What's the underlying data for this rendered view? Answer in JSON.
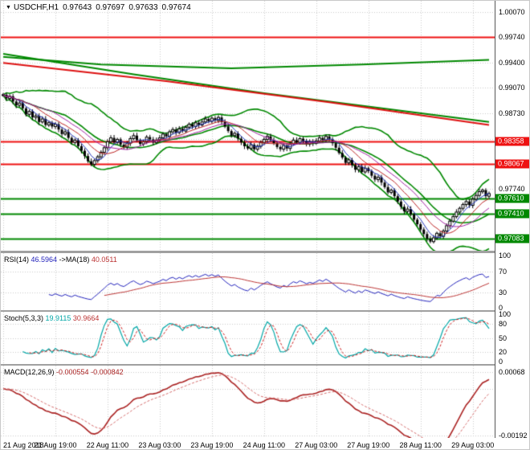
{
  "title_bar": {
    "marker_icon": "▼",
    "symbol_tf": "USDCHF,H1",
    "open": "0.97643",
    "high": "0.97697",
    "low": "0.97633",
    "close": "0.97674"
  },
  "colors": {
    "grid": "#c9c9c9",
    "candle": "#000000",
    "candle_up_fill": "#ffffff",
    "red_line": "#ee1111",
    "green_line": "#008800",
    "bb_green": "#008800",
    "ma_blue": "#2233bb",
    "ma_red": "#bb2222",
    "ma_magenta": "#a020a0",
    "rsi_blue": "#2222bb",
    "rsi_ma_red": "#bb3333",
    "stoch_cyan": "#00a6a6",
    "stoch_sig_red": "#cc2222",
    "macd_red": "#aa2222",
    "macd_sig": "#d46a6a",
    "badge_red": "#ee1111",
    "badge_green": "#008800"
  },
  "chart_data": {
    "type": "candlestick",
    "symbol": "USDCHF",
    "timeframe": "H1",
    "x_axis": {
      "ticks": [
        {
          "t": "21 Aug 2018",
          "bar": 0
        },
        {
          "t": "21 Aug 19:00",
          "bar": 16
        },
        {
          "t": "22 Aug 11:00",
          "bar": 32
        },
        {
          "t": "23 Aug 03:00",
          "bar": 48
        },
        {
          "t": "23 Aug 19:00",
          "bar": 64
        },
        {
          "t": "24 Aug 11:00",
          "bar": 80
        },
        {
          "t": "27 Aug 03:00",
          "bar": 96
        },
        {
          "t": "27 Aug 19:00",
          "bar": 112
        },
        {
          "t": "28 Aug 11:00",
          "bar": 128
        },
        {
          "t": "29 Aug 03:00",
          "bar": 144
        }
      ]
    },
    "main": {
      "price_top": 1.0022,
      "price_bottom": 0.9692,
      "grid_prices": [
        1.0007,
        0.9974,
        0.994,
        0.9907,
        0.9873,
        0.984,
        0.9807,
        0.9774,
        0.9741,
        0.9708
      ],
      "scale_labels": [
        {
          "text": "1.00070",
          "price": 1.0007
        },
        {
          "text": "0.99740",
          "price": 0.9974
        },
        {
          "text": "0.99400",
          "price": 0.994
        },
        {
          "text": "0.99070",
          "price": 0.9907
        },
        {
          "text": "0.98730",
          "price": 0.9873
        },
        {
          "text": "0.97740",
          "price": 0.9774
        }
      ],
      "levels": [
        {
          "price": 0.9974,
          "color": "red"
        },
        {
          "price": 0.98358,
          "color": "red",
          "badge": "0.98358"
        },
        {
          "price": 0.98067,
          "color": "red",
          "badge": "0.98067"
        },
        {
          "price": 0.9761,
          "color": "green",
          "badge": "0.97610"
        },
        {
          "price": 0.9741,
          "color": "green",
          "badge": "0.97410"
        },
        {
          "price": 0.97083,
          "color": "green",
          "badge": "0.97083"
        }
      ],
      "trendlines": [
        {
          "color": "#008800",
          "width": 2,
          "points": [
            [
              0,
              0.9948
            ],
            [
              30,
              0.9938
            ],
            [
              70,
              0.9933
            ],
            [
              110,
              0.9938
            ],
            [
              149,
              0.9944
            ]
          ]
        },
        {
          "color": "#008800",
          "width": 2,
          "points": [
            [
              0,
              0.9952
            ],
            [
              40,
              0.9925
            ],
            [
              80,
              0.99
            ],
            [
              120,
              0.9878
            ],
            [
              149,
              0.9862
            ]
          ]
        },
        {
          "color": "#dd1111",
          "width": 2,
          "points": [
            [
              0,
              0.994
            ],
            [
              50,
              0.9916
            ],
            [
              100,
              0.9888
            ],
            [
              149,
              0.9858
            ]
          ]
        }
      ]
    },
    "closes": [
      0.9898,
      0.9893,
      0.9896,
      0.9889,
      0.9884,
      0.9887,
      0.988,
      0.9872,
      0.9876,
      0.9868,
      0.987,
      0.9862,
      0.9866,
      0.9858,
      0.9861,
      0.9856,
      0.9859,
      0.9852,
      0.9846,
      0.9849,
      0.9841,
      0.9835,
      0.9838,
      0.983,
      0.9824,
      0.9817,
      0.981,
      0.9806,
      0.9811,
      0.9816,
      0.9822,
      0.9828,
      0.9836,
      0.9841,
      0.9835,
      0.9839,
      0.9832,
      0.9829,
      0.9834,
      0.984,
      0.9844,
      0.9838,
      0.9833,
      0.9836,
      0.9842,
      0.9839,
      0.9835,
      0.9838,
      0.9841,
      0.9846,
      0.9843,
      0.9849,
      0.9852,
      0.9848,
      0.9853,
      0.985,
      0.9855,
      0.9859,
      0.9856,
      0.9861,
      0.9858,
      0.9862,
      0.9866,
      0.9863,
      0.9867,
      0.9864,
      0.9868,
      0.9862,
      0.9856,
      0.985,
      0.9844,
      0.9847,
      0.984,
      0.9835,
      0.983,
      0.9827,
      0.9832,
      0.9826,
      0.983,
      0.9835,
      0.9839,
      0.9843,
      0.9838,
      0.9834,
      0.9829,
      0.9826,
      0.9831,
      0.9827,
      0.9833,
      0.9838,
      0.9835,
      0.984,
      0.9837,
      0.9833,
      0.9836,
      0.9834,
      0.9837,
      0.9841,
      0.9838,
      0.9843,
      0.9839,
      0.9834,
      0.9828,
      0.9821,
      0.9815,
      0.9808,
      0.9812,
      0.9805,
      0.9799,
      0.9803,
      0.9796,
      0.9801,
      0.9797,
      0.9791,
      0.9786,
      0.9789,
      0.9782,
      0.9776,
      0.9769,
      0.9772,
      0.9764,
      0.9757,
      0.975,
      0.9744,
      0.9747,
      0.974,
      0.9733,
      0.9727,
      0.972,
      0.9714,
      0.9708,
      0.9704,
      0.9709,
      0.9715,
      0.9711,
      0.9718,
      0.9725,
      0.9731,
      0.9737,
      0.9743,
      0.9748,
      0.9753,
      0.9757,
      0.9752,
      0.976,
      0.9765,
      0.977,
      0.9772,
      0.9764,
      0.97674
    ],
    "indicators": {
      "fast_ma_periods": [
        5,
        10,
        16
      ],
      "bollinger": {
        "period": 20,
        "deviation": 2
      },
      "rsi": {
        "period": 14,
        "ma_period": 18,
        "range": [
          0,
          100
        ],
        "guides": [
          70,
          30
        ],
        "label_segments": [
          {
            "t": "RSI(14) ",
            "c": "#000000"
          },
          {
            "t": "46.5964",
            "c": "#2222bb"
          },
          {
            "t": " ->MA(18) ",
            "c": "#000000"
          },
          {
            "t": "40.0511",
            "c": "#bb3333"
          }
        ],
        "scale_labels": [
          {
            "t": "100",
            "v": 100
          },
          {
            "t": "70",
            "v": 70
          },
          {
            "t": "30",
            "v": 30
          },
          {
            "t": "0",
            "v": 0
          }
        ]
      },
      "stoch": {
        "k": 5,
        "slowing": 3,
        "d": 3,
        "range": [
          0,
          100
        ],
        "guides": [
          80,
          50,
          20
        ],
        "label_segments": [
          {
            "t": "Stoch(5,3,3) ",
            "c": "#000000"
          },
          {
            "t": "19.9115",
            "c": "#00a6a6"
          },
          {
            "t": " 30.9664",
            "c": "#bb3333"
          }
        ],
        "scale_labels": [
          {
            "t": "100",
            "v": 100
          },
          {
            "t": "80",
            "v": 80
          },
          {
            "t": "50",
            "v": 50
          },
          {
            "t": "20",
            "v": 20
          },
          {
            "t": "0",
            "v": 0
          }
        ]
      },
      "macd": {
        "fast": 12,
        "slow": 26,
        "signal": 9,
        "range_top": 0.00094,
        "range_bottom": -0.00202,
        "guides": [
          0.00068,
          0,
          -0.00192
        ],
        "label_segments": [
          {
            "t": "MACD(12,26,9) ",
            "c": "#000000"
          },
          {
            "t": "-0.000554",
            "c": "#aa2222"
          },
          {
            "t": " -0.000842",
            "c": "#aa2222"
          }
        ],
        "scale_labels": [
          {
            "t": "0.00068",
            "v": 0.00068
          },
          {
            "t": "-0.00192",
            "v": -0.00192
          }
        ]
      }
    }
  }
}
